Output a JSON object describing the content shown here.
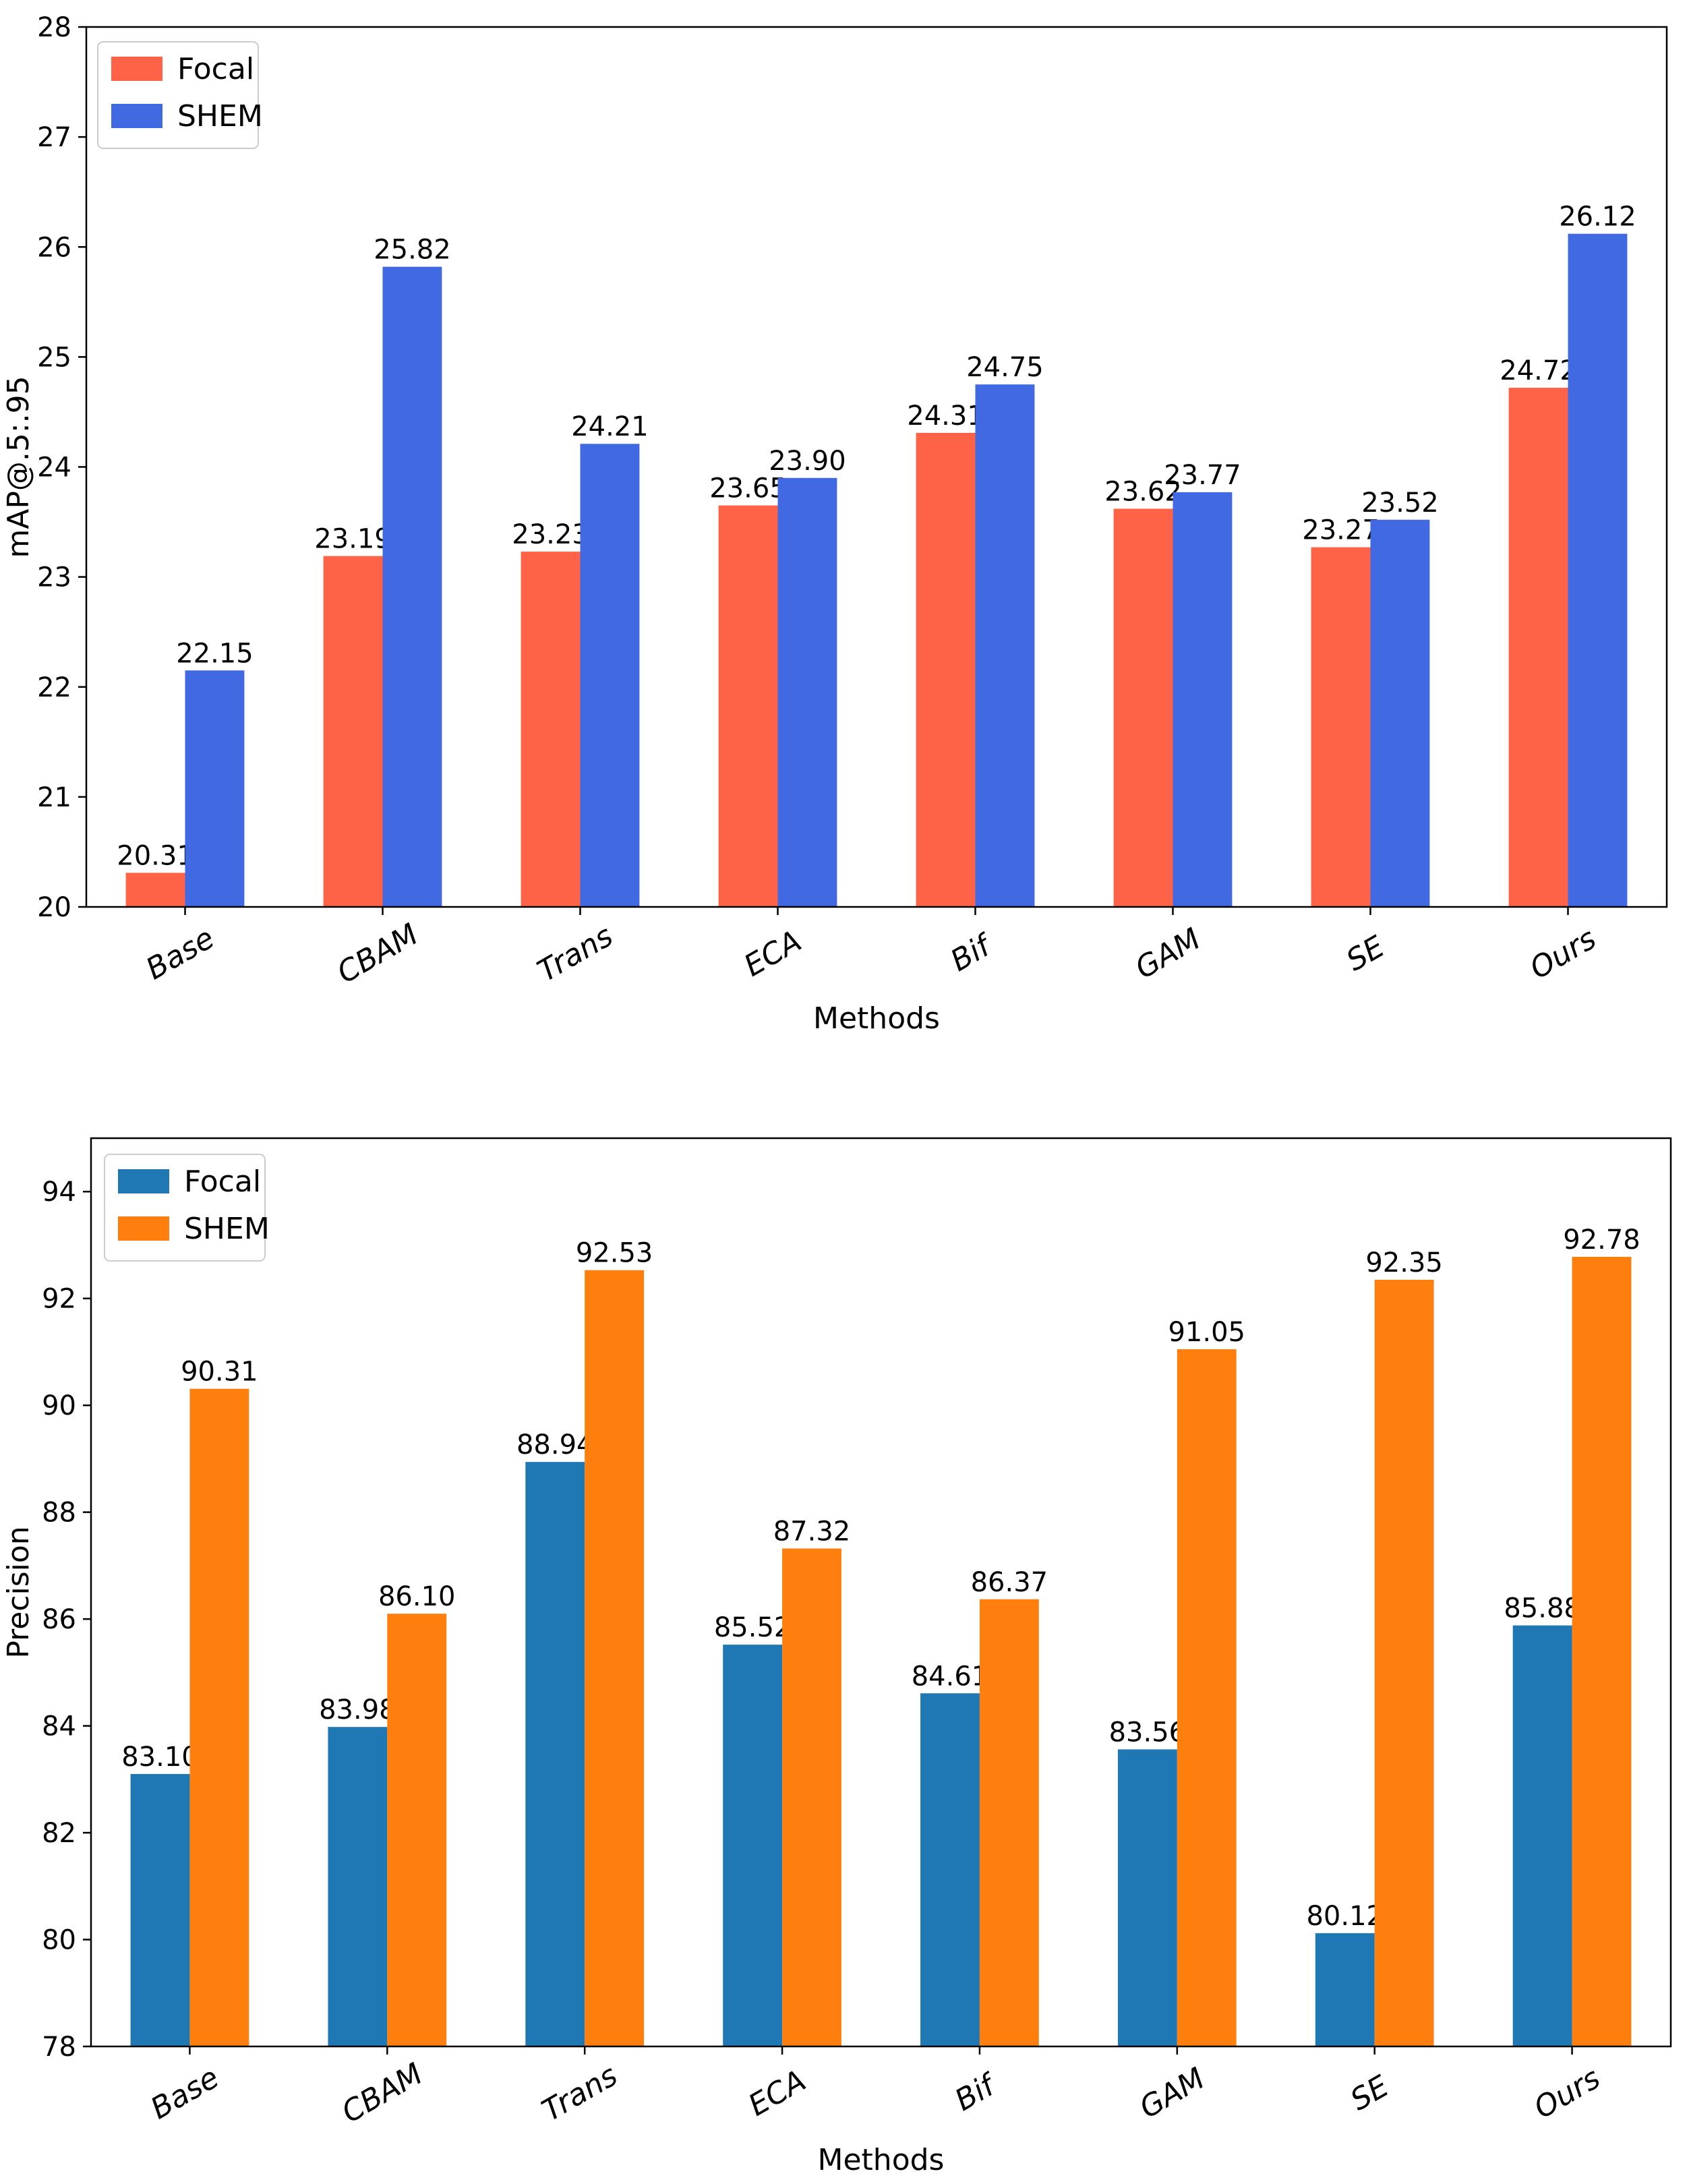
{
  "chart_data": [
    {
      "type": "bar",
      "categories": [
        "Base",
        "CBAM",
        "Trans",
        "ECA",
        "Bif",
        "GAM",
        "SE",
        "Ours"
      ],
      "series": [
        {
          "name": "Focal",
          "color": "#ff6347",
          "values": [
            20.31,
            23.19,
            23.23,
            23.65,
            24.31,
            23.62,
            23.27,
            24.72
          ]
        },
        {
          "name": "SHEM",
          "color": "#4169e1",
          "values": [
            22.15,
            25.82,
            24.21,
            23.9,
            24.75,
            23.77,
            23.52,
            26.12
          ]
        }
      ],
      "value_labels": {
        "Focal": [
          "20.31",
          "23.19",
          "23.23",
          "23.65",
          "24.31",
          "23.62",
          "23.27",
          "24.72"
        ],
        "SHEM": [
          "22.15",
          "25.82",
          "24.21",
          "23.90",
          "24.75",
          "23.77",
          "23.52",
          "26.12"
        ]
      },
      "xlabel": "Methods",
      "ylabel": "mAP@.5:.95",
      "ylim": [
        20,
        28
      ],
      "yticks": [
        20,
        21,
        22,
        23,
        24,
        25,
        26,
        27,
        28
      ],
      "legend_position": "top-left",
      "grid": false
    },
    {
      "type": "bar",
      "categories": [
        "Base",
        "CBAM",
        "Trans",
        "ECA",
        "Bif",
        "GAM",
        "SE",
        "Ours"
      ],
      "series": [
        {
          "name": "Focal",
          "color": "#1f77b4",
          "values": [
            83.1,
            83.98,
            88.94,
            85.52,
            84.61,
            83.56,
            80.12,
            85.88
          ]
        },
        {
          "name": "SHEM",
          "color": "#ff7f0e",
          "values": [
            90.31,
            86.1,
            92.53,
            87.32,
            86.37,
            91.05,
            92.35,
            92.78
          ]
        }
      ],
      "value_labels": {
        "Focal": [
          "83.10",
          "83.98",
          "88.94",
          "85.52",
          "84.61",
          "83.56",
          "80.12",
          "85.88"
        ],
        "SHEM": [
          "90.31",
          "86.10",
          "92.53",
          "87.32",
          "86.37",
          "91.05",
          "92.35",
          "92.78"
        ]
      },
      "xlabel": "Methods",
      "ylabel": "Precision",
      "ylim": [
        78,
        95
      ],
      "yticks": [
        78,
        80,
        82,
        84,
        86,
        88,
        90,
        92,
        94
      ],
      "legend_position": "top-left",
      "grid": false
    }
  ]
}
